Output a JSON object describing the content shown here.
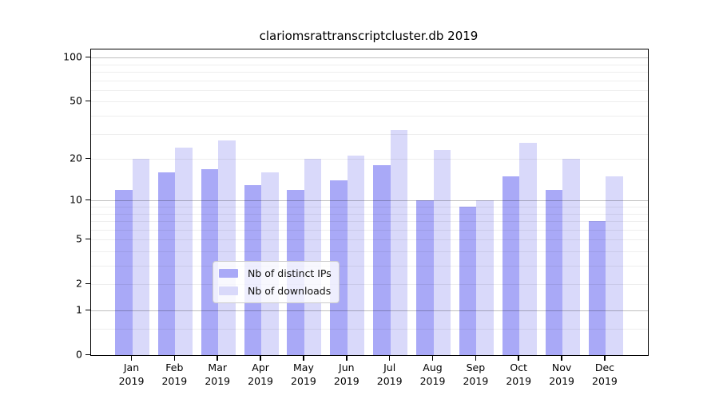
{
  "chart_data": {
    "type": "bar",
    "title": "clariomsrattranscriptcluster.db 2019",
    "categories": [
      "Jan",
      "Feb",
      "Mar",
      "Apr",
      "May",
      "Jun",
      "Jul",
      "Aug",
      "Sep",
      "Oct",
      "Nov",
      "Dec"
    ],
    "category_year": "2019",
    "series": [
      {
        "name": "Nb of distinct IPs",
        "color": "#a9a9f7",
        "values": [
          12,
          16,
          17,
          13,
          12,
          14,
          18,
          10,
          9,
          15,
          12,
          7
        ]
      },
      {
        "name": "Nb of downloads",
        "color": "#d9d9fa",
        "values": [
          20,
          24,
          27,
          16,
          20,
          21,
          32,
          23,
          10,
          26,
          20,
          15
        ]
      }
    ],
    "yscale": "log1p",
    "yticks": [
      0,
      1,
      2,
      5,
      10,
      20,
      50,
      100
    ],
    "ylim": [
      0,
      113
    ],
    "grid": true,
    "gridlines_major": [
      1,
      10,
      100
    ],
    "gridlines_light": [
      0.5,
      2,
      3,
      4,
      5,
      6,
      7,
      8,
      9,
      20,
      30,
      40,
      50,
      60,
      70,
      80,
      90
    ],
    "legend_position": "lower center",
    "xlabel": "",
    "ylabel": ""
  },
  "colors": {
    "background": "#ffffff",
    "axis": "#000000",
    "grid_major": "rgba(0,0,0,0.25)",
    "grid_light": "rgba(0,0,0,0.065)",
    "legend_border": "#cccccc"
  }
}
